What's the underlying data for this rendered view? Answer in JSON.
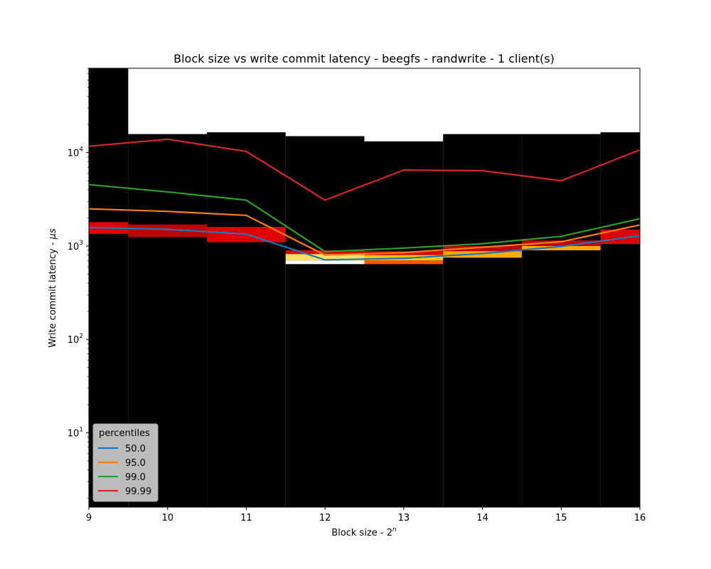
{
  "chart_data": {
    "type": "line",
    "title": "Block size vs write commit latency - beegfs - randwrite - 1 client(s)",
    "xlabel": "Block size - 2",
    "xlabel_superscript": "n",
    "ylabel": "Write commit latency - ",
    "ylabel_unit": "μs",
    "x": [
      9,
      10,
      11,
      12,
      13,
      14,
      15,
      16
    ],
    "xlim": [
      9,
      16
    ],
    "ylim": [
      1.6,
      80000
    ],
    "yscale": "log",
    "x_tick_labels": [
      "9",
      "10",
      "11",
      "12",
      "13",
      "14",
      "15",
      "16"
    ],
    "y_tick_labels": [
      {
        "base": "10",
        "exp": "1",
        "value": 10
      },
      {
        "base": "10",
        "exp": "2",
        "value": 100
      },
      {
        "base": "10",
        "exp": "3",
        "value": 1000
      },
      {
        "base": "10",
        "exp": "4",
        "value": 10000
      }
    ],
    "series": [
      {
        "name": "50.0",
        "color": "#1f77b4",
        "values": [
          1580,
          1510,
          1340,
          710,
          740,
          830,
          990,
          1290
        ]
      },
      {
        "name": "95.0",
        "color": "#ff7f0e",
        "values": [
          2500,
          2350,
          2130,
          800,
          850,
          970,
          1110,
          1680
        ]
      },
      {
        "name": "99.0",
        "color": "#2ca02c",
        "values": [
          4550,
          3800,
          3100,
          870,
          950,
          1060,
          1270,
          1960
        ]
      },
      {
        "name": "99.99",
        "color": "#d62728",
        "values": [
          11700,
          13900,
          10300,
          3100,
          6500,
          6400,
          5000,
          10700
        ]
      }
    ],
    "legend": {
      "title": "percentiles",
      "placement": "lower-left"
    },
    "heatmap": {
      "colormap": "black-red-yellow-white",
      "column_tops": [
        80000,
        15800,
        16500,
        15000,
        13200,
        15800,
        15800,
        16500
      ],
      "bands": [
        [
          {
            "lo": 1350,
            "hi": 1800,
            "intensity": 0.35
          }
        ],
        [
          {
            "lo": 1250,
            "hi": 1700,
            "intensity": 0.3
          }
        ],
        [
          {
            "lo": 1100,
            "hi": 1600,
            "intensity": 0.35
          }
        ],
        [
          {
            "lo": 820,
            "hi": 900,
            "intensity": 0.35
          },
          {
            "lo": 700,
            "hi": 820,
            "intensity": 0.85
          },
          {
            "lo": 640,
            "hi": 700,
            "intensity": 1.0
          }
        ],
        [
          {
            "lo": 800,
            "hi": 880,
            "intensity": 0.35
          },
          {
            "lo": 700,
            "hi": 800,
            "intensity": 0.75
          },
          {
            "lo": 640,
            "hi": 700,
            "intensity": 0.55
          }
        ],
        [
          {
            "lo": 880,
            "hi": 1000,
            "intensity": 0.3
          },
          {
            "lo": 750,
            "hi": 880,
            "intensity": 0.7
          }
        ],
        [
          {
            "lo": 1000,
            "hi": 1150,
            "intensity": 0.3
          },
          {
            "lo": 900,
            "hi": 1000,
            "intensity": 0.7
          }
        ],
        [
          {
            "lo": 1050,
            "hi": 1500,
            "intensity": 0.35
          }
        ]
      ]
    }
  }
}
